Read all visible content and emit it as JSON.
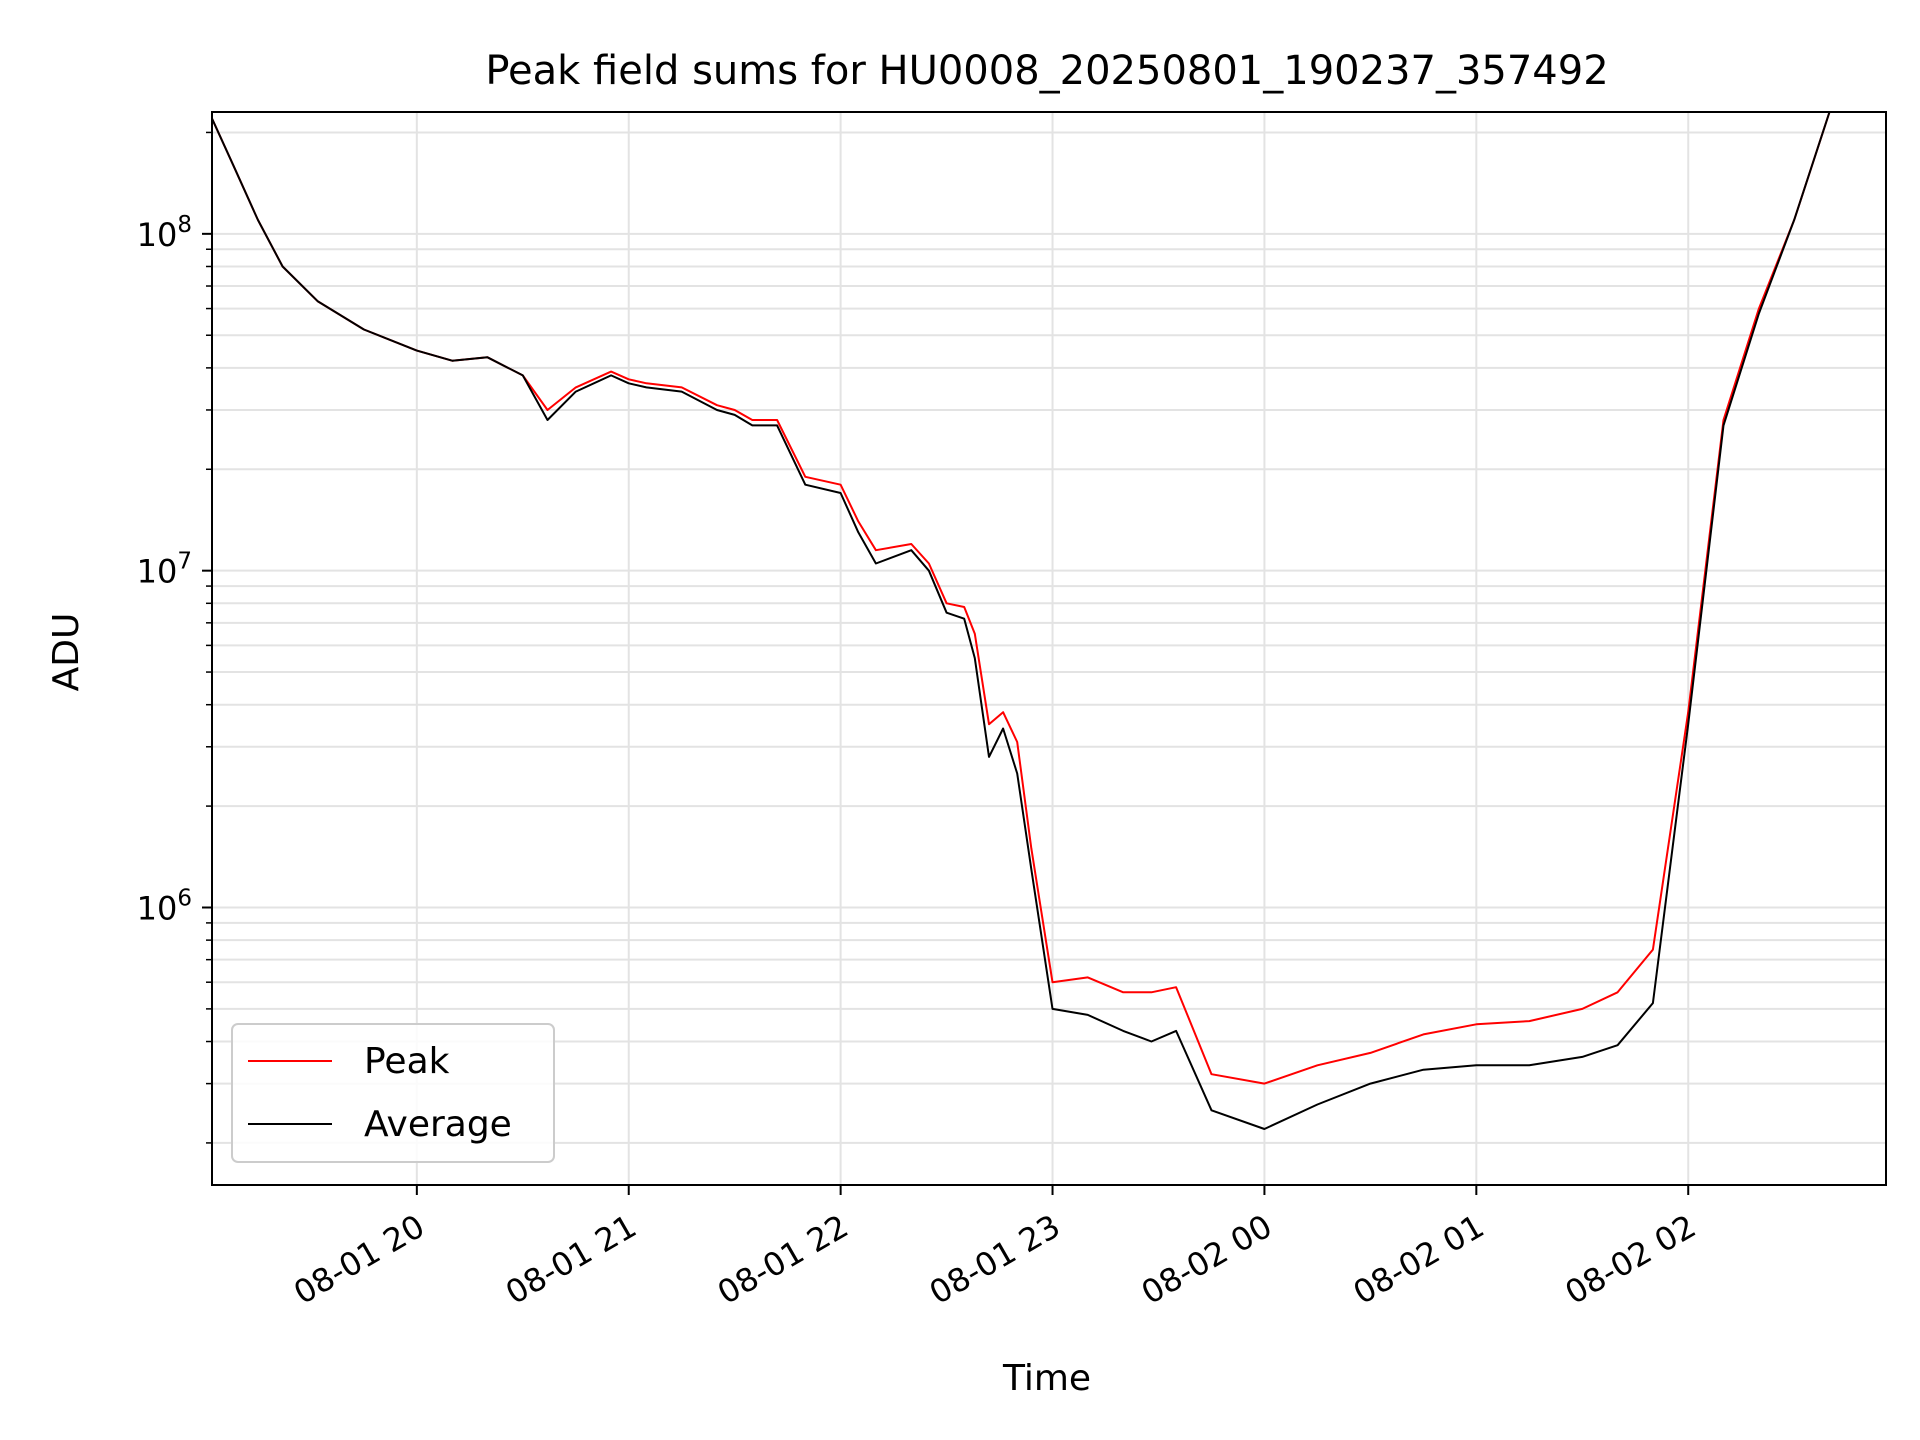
{
  "chart_data": {
    "type": "line",
    "title": "Peak field sums for HU0008_20250801_190237_357492",
    "xlabel": "Time",
    "ylabel": "ADU",
    "yscale": "log",
    "xlim": [
      "2025-08-01 19:02",
      "2025-08-02 02:56"
    ],
    "ylim": [
      150000,
      230000000
    ],
    "grid": true,
    "legend_position": "lower-left",
    "x_ticks": [
      {
        "t": "2025-08-01 20:00",
        "label": "08-01 20"
      },
      {
        "t": "2025-08-01 21:00",
        "label": "08-01 21"
      },
      {
        "t": "2025-08-01 22:00",
        "label": "08-01 22"
      },
      {
        "t": "2025-08-01 23:00",
        "label": "08-01 23"
      },
      {
        "t": "2025-08-02 00:00",
        "label": "08-02 00"
      },
      {
        "t": "2025-08-02 01:00",
        "label": "08-02 01"
      },
      {
        "t": "2025-08-02 02:00",
        "label": "08-02 02"
      }
    ],
    "y_ticks": [
      {
        "value": 1000000,
        "base": "10",
        "exp": "6"
      },
      {
        "value": 10000000,
        "base": "10",
        "exp": "7"
      },
      {
        "value": 100000000,
        "base": "10",
        "exp": "8"
      }
    ],
    "series": [
      {
        "name": "Peak",
        "color": "#ff0000",
        "t": [
          "2025-08-01 19:02",
          "2025-08-01 19:08",
          "2025-08-01 19:15",
          "2025-08-01 19:22",
          "2025-08-01 19:32",
          "2025-08-01 19:45",
          "2025-08-01 20:00",
          "2025-08-01 20:10",
          "2025-08-01 20:20",
          "2025-08-01 20:30",
          "2025-08-01 20:37",
          "2025-08-01 20:45",
          "2025-08-01 20:55",
          "2025-08-01 21:00",
          "2025-08-01 21:05",
          "2025-08-01 21:15",
          "2025-08-01 21:25",
          "2025-08-01 21:30",
          "2025-08-01 21:35",
          "2025-08-01 21:42",
          "2025-08-01 21:50",
          "2025-08-01 22:00",
          "2025-08-01 22:05",
          "2025-08-01 22:10",
          "2025-08-01 22:20",
          "2025-08-01 22:25",
          "2025-08-01 22:30",
          "2025-08-01 22:35",
          "2025-08-01 22:38",
          "2025-08-01 22:42",
          "2025-08-01 22:46",
          "2025-08-01 22:50",
          "2025-08-01 22:54",
          "2025-08-01 23:00",
          "2025-08-01 23:10",
          "2025-08-01 23:20",
          "2025-08-01 23:28",
          "2025-08-01 23:35",
          "2025-08-01 23:45",
          "2025-08-02 00:00",
          "2025-08-02 00:15",
          "2025-08-02 00:30",
          "2025-08-02 00:45",
          "2025-08-02 01:00",
          "2025-08-02 01:15",
          "2025-08-02 01:30",
          "2025-08-02 01:40",
          "2025-08-02 01:50",
          "2025-08-02 02:00",
          "2025-08-02 02:10",
          "2025-08-02 02:20",
          "2025-08-02 02:30",
          "2025-08-02 02:40",
          "2025-08-02 02:46",
          "2025-08-02 02:56"
        ],
        "values": [
          220000000,
          160000000,
          110000000,
          80000000,
          63000000,
          52000000,
          45000000,
          42000000,
          43000000,
          38000000,
          30000000,
          35000000,
          39000000,
          37000000,
          36000000,
          35000000,
          31000000,
          30000000,
          28000000,
          28000000,
          19000000,
          18000000,
          14000000,
          11500000,
          12000000,
          10500000,
          8000000,
          7800000,
          6500000,
          3500000,
          3800000,
          3100000,
          1500000,
          600000,
          620000,
          560000,
          560000,
          580000,
          320000,
          300000,
          340000,
          370000,
          420000,
          450000,
          460000,
          500000,
          560000,
          750000,
          3800000,
          28000000,
          60000000,
          110000000,
          230000000,
          230000000,
          230000000
        ]
      },
      {
        "name": "Average",
        "color": "#000000",
        "t": [
          "2025-08-01 19:02",
          "2025-08-01 19:08",
          "2025-08-01 19:15",
          "2025-08-01 19:22",
          "2025-08-01 19:32",
          "2025-08-01 19:45",
          "2025-08-01 20:00",
          "2025-08-01 20:10",
          "2025-08-01 20:20",
          "2025-08-01 20:30",
          "2025-08-01 20:37",
          "2025-08-01 20:45",
          "2025-08-01 20:55",
          "2025-08-01 21:00",
          "2025-08-01 21:05",
          "2025-08-01 21:15",
          "2025-08-01 21:25",
          "2025-08-01 21:30",
          "2025-08-01 21:35",
          "2025-08-01 21:42",
          "2025-08-01 21:50",
          "2025-08-01 22:00",
          "2025-08-01 22:05",
          "2025-08-01 22:10",
          "2025-08-01 22:20",
          "2025-08-01 22:25",
          "2025-08-01 22:30",
          "2025-08-01 22:35",
          "2025-08-01 22:38",
          "2025-08-01 22:42",
          "2025-08-01 22:46",
          "2025-08-01 22:50",
          "2025-08-01 22:54",
          "2025-08-01 23:00",
          "2025-08-01 23:10",
          "2025-08-01 23:20",
          "2025-08-01 23:28",
          "2025-08-01 23:35",
          "2025-08-01 23:45",
          "2025-08-02 00:00",
          "2025-08-02 00:15",
          "2025-08-02 00:30",
          "2025-08-02 00:45",
          "2025-08-02 01:00",
          "2025-08-02 01:15",
          "2025-08-02 01:30",
          "2025-08-02 01:40",
          "2025-08-02 01:50",
          "2025-08-02 02:00",
          "2025-08-02 02:10",
          "2025-08-02 02:20",
          "2025-08-02 02:30",
          "2025-08-02 02:40",
          "2025-08-02 02:46",
          "2025-08-02 02:56"
        ],
        "values": [
          220000000,
          160000000,
          110000000,
          80000000,
          63000000,
          52000000,
          45000000,
          42000000,
          43000000,
          38000000,
          28000000,
          34000000,
          38000000,
          36000000,
          35000000,
          34000000,
          30000000,
          29000000,
          27000000,
          27000000,
          18000000,
          17000000,
          13000000,
          10500000,
          11500000,
          10000000,
          7500000,
          7200000,
          5500000,
          2800000,
          3400000,
          2500000,
          1300000,
          500000,
          480000,
          430000,
          400000,
          430000,
          250000,
          220000,
          260000,
          300000,
          330000,
          340000,
          340000,
          360000,
          390000,
          520000,
          3500000,
          27000000,
          58000000,
          110000000,
          230000000,
          230000000,
          230000000
        ]
      }
    ]
  }
}
